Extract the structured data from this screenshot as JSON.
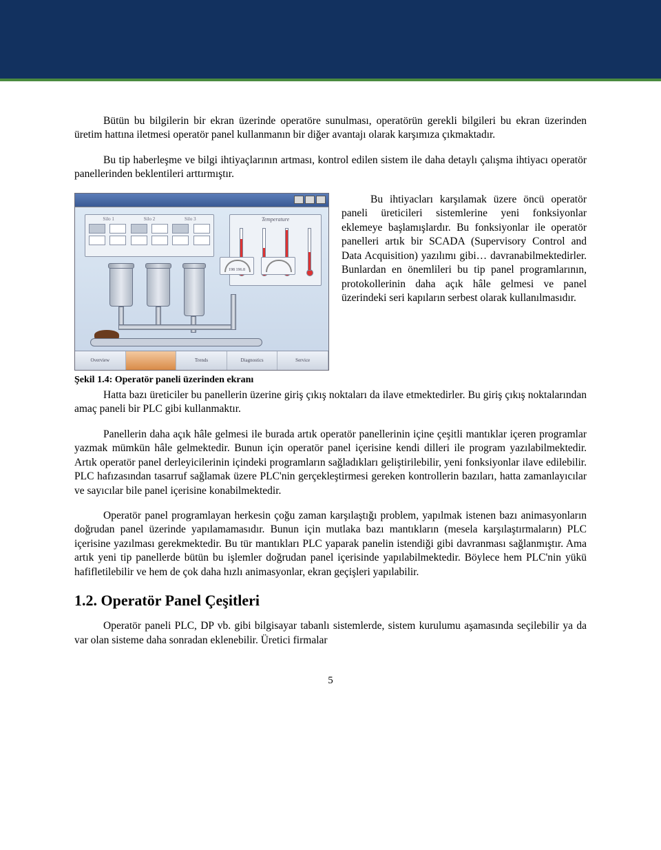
{
  "banner": {
    "bg": "#12315f",
    "accent": "#4a8a3f"
  },
  "para1": "Bütün bu bilgilerin bir ekran üzerinde operatöre sunulması, operatörün gerekli bilgileri bu ekran üzerinden üretim hattına iletmesi operatör panel kullanmanın bir diğer avantajı olarak karşımıza çıkmaktadır.",
  "para2": "Bu tip haberleşme ve bilgi ihtiyaçlarının artması, kontrol edilen sistem ile daha detaylı çalışma ihtiyacı operatör panellerinden beklentileri arttırmıştır.",
  "fig": {
    "caption": "Şekil 1.4: Operatör paneli üzerinden ekranı",
    "side_text": "Bu ihtiyacları karşılamak üzere öncü operatör paneli üreticileri sistemlerine yeni fonksiyonlar eklemeye başlamışlardır. Bu fonksiyonlar ile operatör panelleri artık bir SCADA (Supervisory Control and Data Acquisition) yazılımı gibi… davranabilmektedirler. Bunlardan en önemlileri bu tip panel programlarının, protokollerinin daha açık hâle gelmesi ve panel üzerindeki seri kapıların serbest olarak kullanılmasıdır.",
    "temp_label": "Temperature",
    "therm_fills": [
      45,
      32,
      58,
      26
    ],
    "gauge_vals": "198   196.8",
    "silo_hdr": [
      "Silo 1",
      "Silo 2",
      "Silo 3"
    ],
    "buttons": [
      "Overview",
      "",
      "Trends",
      "Diagnostics",
      "Service"
    ]
  },
  "para3": "Hatta bazı üreticiler bu panellerin üzerine giriş çıkış noktaları da ilave etmektedirler. Bu giriş çıkış noktalarından amaç paneli bir PLC gibi kullanmaktır.",
  "para4": "Panellerin daha açık hâle gelmesi ile burada artık operatör panellerinin içine çeşitli mantıklar içeren programlar yazmak mümkün hâle gelmektedir. Bunun için operatör panel içerisine kendi dilleri ile program yazılabilmektedir. Artık operatör panel derleyicilerinin içindeki programların sağladıkları geliştirilebilir, yeni fonksiyonlar ilave edilebilir. PLC hafızasından tasarruf sağlamak üzere PLC'nin gerçekleştirmesi gereken kontrollerin bazıları, hatta zamanlayıcılar ve sayıcılar bile panel içerisine konabilmektedir.",
  "para5": "Operatör panel programlayan herkesin çoğu zaman karşılaştığı problem, yapılmak istenen bazı animasyonların doğrudan panel üzerinde yapılamamasıdır. Bunun için mutlaka bazı mantıkların (mesela karşılaştırmaların) PLC içerisine yazılması gerekmektedir. Bu tür mantıkları PLC yaparak panelin istendiği gibi davranması sağlanmıştır. Ama artık yeni tip panellerde bütün bu işlemler doğrudan panel içerisinde yapılabilmektedir. Böylece hem PLC'nin yükü hafifletilebilir ve hem de çok daha hızlı animasyonlar, ekran geçişleri yapılabilir.",
  "section_title": "1.2. Operatör Panel Çeşitleri",
  "para6": "Operatör paneli PLC, DP vb. gibi bilgisayar tabanlı sistemlerde, sistem kurulumu aşamasında seçilebilir ya da var olan sisteme daha sonradan eklenebilir. Üretici firmalar",
  "page_number": "5"
}
